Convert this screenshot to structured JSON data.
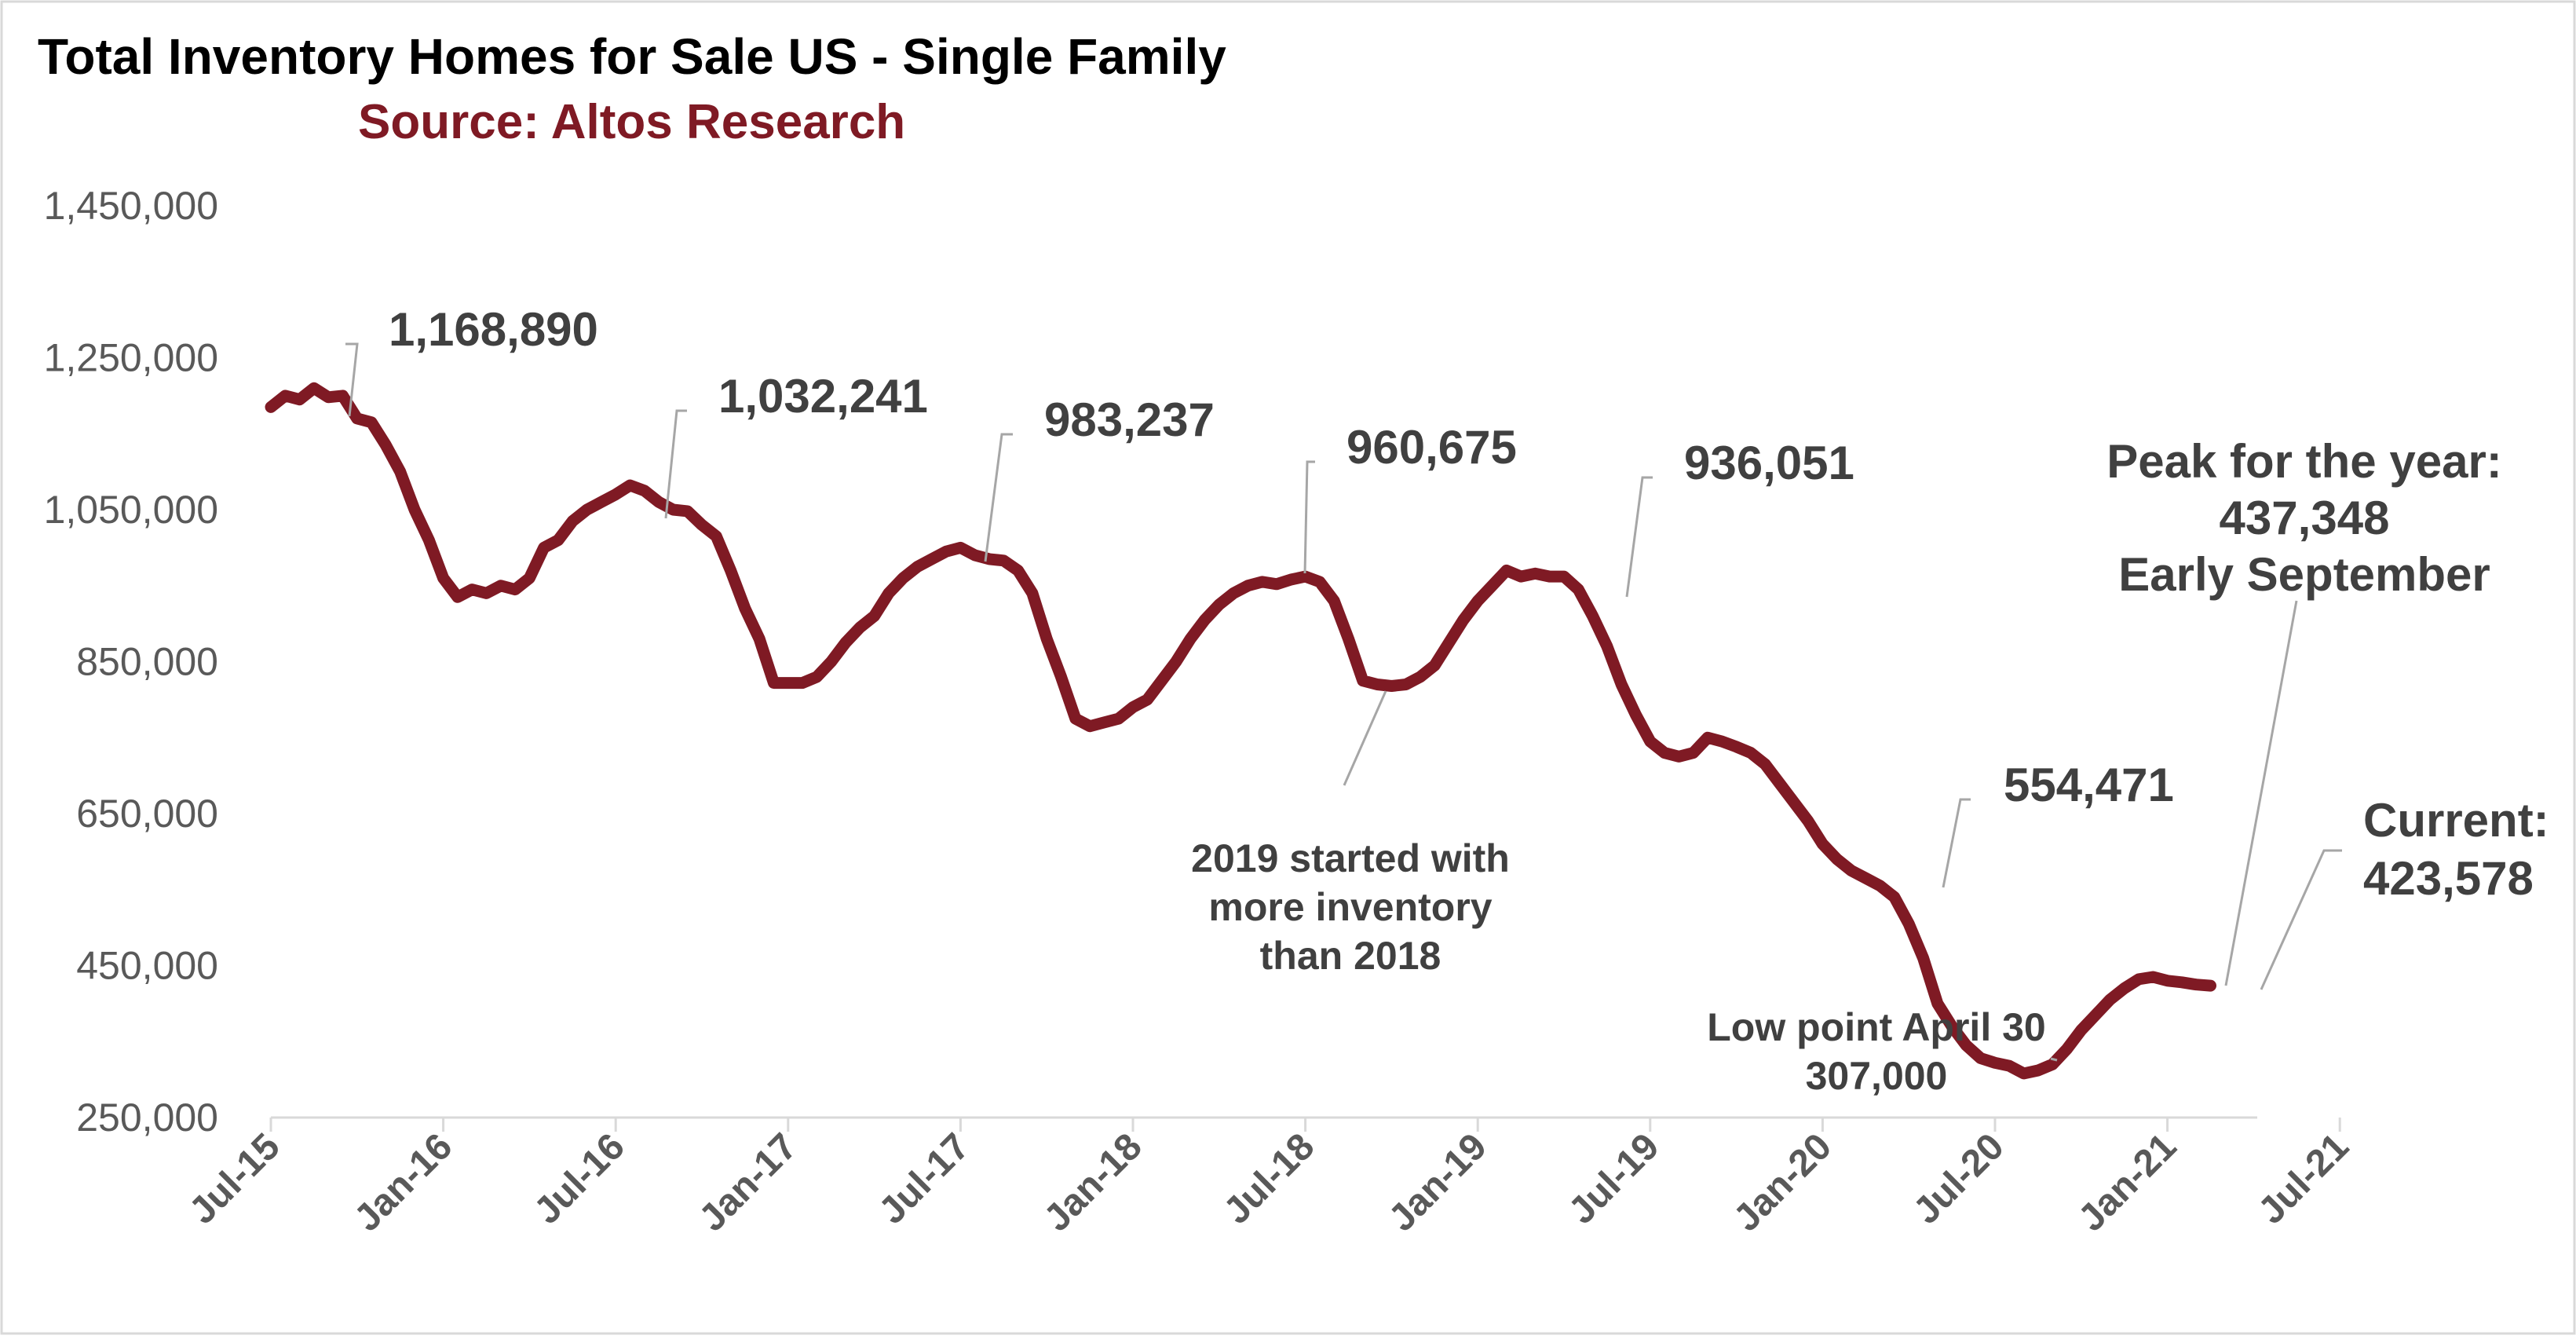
{
  "chart_data": {
    "type": "line",
    "title": "Total Inventory Homes for Sale US - Single Family",
    "subtitle": "Source: Altos Research",
    "xlabel": "",
    "ylabel": "",
    "ylim": [
      250000,
      1450000
    ],
    "yticks": [
      "1,450,000",
      "1,250,000",
      "1,050,000",
      "850,000",
      "650,000",
      "450,000",
      "250,000"
    ],
    "ytick_values": [
      1450000,
      1250000,
      1050000,
      850000,
      650000,
      450000,
      250000
    ],
    "xlim": [
      0,
      75
    ],
    "xticks": [
      "Jul-15",
      "Jan-16",
      "Jul-16",
      "Jan-17",
      "Jul-17",
      "Jan-18",
      "Jul-18",
      "Jan-19",
      "Jul-19",
      "Jan-20",
      "Jul-20",
      "Jan-21",
      "Jul-21"
    ],
    "xtick_values": [
      0,
      6,
      12,
      18,
      24,
      30,
      36,
      42,
      48,
      54,
      60,
      66,
      72
    ],
    "grid": false,
    "line_color": "#7f1a24",
    "series": [
      {
        "name": "Total Inventory",
        "points": [
          [
            0.0,
            1185000
          ],
          [
            0.5,
            1200000
          ],
          [
            1.0,
            1195000
          ],
          [
            1.5,
            1210000
          ],
          [
            2.0,
            1198000
          ],
          [
            2.5,
            1200000
          ],
          [
            3.0,
            1170000
          ],
          [
            3.5,
            1165000
          ],
          [
            4.0,
            1135000
          ],
          [
            4.5,
            1100000
          ],
          [
            5.0,
            1050000
          ],
          [
            5.5,
            1010000
          ],
          [
            6.0,
            960000
          ],
          [
            6.5,
            935000
          ],
          [
            7.0,
            945000
          ],
          [
            7.5,
            940000
          ],
          [
            8.0,
            950000
          ],
          [
            8.5,
            945000
          ],
          [
            9.0,
            960000
          ],
          [
            9.5,
            1000000
          ],
          [
            10.0,
            1010000
          ],
          [
            10.5,
            1035000
          ],
          [
            11.0,
            1050000
          ],
          [
            11.5,
            1060000
          ],
          [
            12.0,
            1070000
          ],
          [
            12.5,
            1082000
          ],
          [
            13.0,
            1075000
          ],
          [
            13.5,
            1060000
          ],
          [
            14.0,
            1050000
          ],
          [
            14.5,
            1048000
          ],
          [
            15.0,
            1030000
          ],
          [
            15.5,
            1015000
          ],
          [
            16.0,
            970000
          ],
          [
            16.5,
            920000
          ],
          [
            17.0,
            880000
          ],
          [
            17.5,
            822000
          ],
          [
            18.0,
            822000
          ],
          [
            18.5,
            822000
          ],
          [
            19.0,
            830000
          ],
          [
            19.5,
            850000
          ],
          [
            20.0,
            875000
          ],
          [
            20.5,
            895000
          ],
          [
            21.0,
            910000
          ],
          [
            21.5,
            940000
          ],
          [
            22.0,
            960000
          ],
          [
            22.5,
            975000
          ],
          [
            23.0,
            985000
          ],
          [
            23.5,
            995000
          ],
          [
            24.0,
            1000000
          ],
          [
            24.5,
            990000
          ],
          [
            25.0,
            985000
          ],
          [
            25.5,
            983000
          ],
          [
            26.0,
            970000
          ],
          [
            26.5,
            940000
          ],
          [
            27.0,
            880000
          ],
          [
            27.5,
            830000
          ],
          [
            28.0,
            775000
          ],
          [
            28.5,
            765000
          ],
          [
            29.0,
            770000
          ],
          [
            29.5,
            775000
          ],
          [
            30.0,
            790000
          ],
          [
            30.5,
            800000
          ],
          [
            31.0,
            825000
          ],
          [
            31.5,
            850000
          ],
          [
            32.0,
            880000
          ],
          [
            32.5,
            905000
          ],
          [
            33.0,
            925000
          ],
          [
            33.5,
            940000
          ],
          [
            34.0,
            950000
          ],
          [
            34.5,
            955000
          ],
          [
            35.0,
            952000
          ],
          [
            35.5,
            958000
          ],
          [
            36.0,
            962000
          ],
          [
            36.5,
            955000
          ],
          [
            37.0,
            930000
          ],
          [
            37.5,
            880000
          ],
          [
            38.0,
            825000
          ],
          [
            38.5,
            820000
          ],
          [
            39.0,
            818000
          ],
          [
            39.5,
            820000
          ],
          [
            40.0,
            830000
          ],
          [
            40.5,
            845000
          ],
          [
            41.0,
            875000
          ],
          [
            41.5,
            905000
          ],
          [
            42.0,
            930000
          ],
          [
            42.5,
            950000
          ],
          [
            43.0,
            970000
          ],
          [
            43.5,
            962000
          ],
          [
            44.0,
            966000
          ],
          [
            44.5,
            962000
          ],
          [
            45.0,
            962000
          ],
          [
            45.5,
            945000
          ],
          [
            46.0,
            910000
          ],
          [
            46.5,
            870000
          ],
          [
            47.0,
            820000
          ],
          [
            47.5,
            780000
          ],
          [
            48.0,
            745000
          ],
          [
            48.5,
            730000
          ],
          [
            49.0,
            725000
          ],
          [
            49.5,
            730000
          ],
          [
            50.0,
            750000
          ],
          [
            50.5,
            745000
          ],
          [
            51.0,
            738000
          ],
          [
            51.5,
            730000
          ],
          [
            52.0,
            715000
          ],
          [
            52.5,
            690000
          ],
          [
            53.0,
            665000
          ],
          [
            53.5,
            640000
          ],
          [
            54.0,
            610000
          ],
          [
            54.5,
            590000
          ],
          [
            55.0,
            575000
          ],
          [
            55.5,
            565000
          ],
          [
            56.0,
            555000
          ],
          [
            56.5,
            540000
          ],
          [
            57.0,
            505000
          ],
          [
            57.5,
            460000
          ],
          [
            58.0,
            400000
          ],
          [
            58.5,
            370000
          ],
          [
            59.0,
            345000
          ],
          [
            59.5,
            328000
          ],
          [
            60.0,
            322000
          ],
          [
            60.5,
            318000
          ],
          [
            61.0,
            308000
          ],
          [
            61.5,
            312000
          ],
          [
            62.0,
            320000
          ],
          [
            62.5,
            340000
          ],
          [
            63.0,
            365000
          ],
          [
            63.5,
            385000
          ],
          [
            64.0,
            405000
          ],
          [
            64.5,
            420000
          ],
          [
            65.0,
            432000
          ],
          [
            65.5,
            435000
          ],
          [
            66.0,
            430000
          ],
          [
            66.5,
            428000
          ],
          [
            67.0,
            425000
          ],
          [
            67.5,
            423578
          ]
        ]
      }
    ],
    "annotations": [
      {
        "id": "a1",
        "lines": [
          "1,168,890"
        ],
        "x": 3.0,
        "y": 1168890
      },
      {
        "id": "a2",
        "lines": [
          "1,032,241"
        ],
        "x": 15.3,
        "y": 1032241
      },
      {
        "id": "a3",
        "lines": [
          "983,237"
        ],
        "x": 27.0,
        "y": 983237
      },
      {
        "id": "a4",
        "lines": [
          "960,675"
        ],
        "x": 38.3,
        "y": 960675
      },
      {
        "id": "a5",
        "lines": [
          "936,051"
        ],
        "x": 51.0,
        "y": 936051
      },
      {
        "id": "a6",
        "lines": [
          "2019 started with",
          "more inventory",
          "than 2018"
        ],
        "x": 42.0,
        "y": 830000
      },
      {
        "id": "a7",
        "lines": [
          "554,471"
        ],
        "x": 63.2,
        "y": 554471
      },
      {
        "id": "a8",
        "lines": [
          "Low point April 30",
          "307,000"
        ],
        "x": 71.5,
        "y": 307000
      },
      {
        "id": "a9",
        "lines": [
          "Peak for the year:",
          "437,348",
          "Early September"
        ],
        "x": 73.0,
        "y": 437348
      },
      {
        "id": "a10",
        "lines": [
          "Current:",
          "423,578"
        ],
        "x": 75.0,
        "y": 423578
      }
    ]
  }
}
